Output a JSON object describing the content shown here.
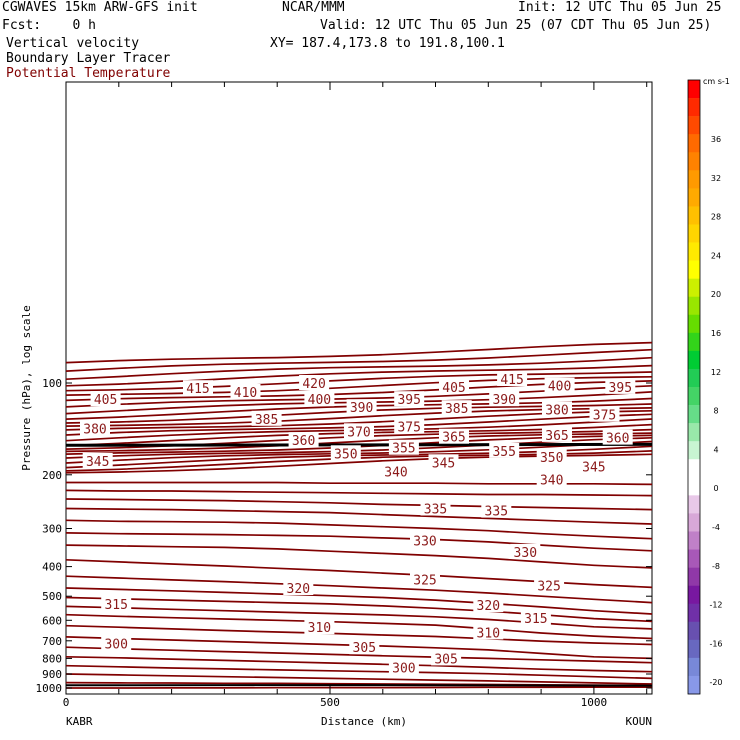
{
  "header": {
    "model": "CGWAVES 15km ARW-GFS init",
    "fcst": "Fcst:    0 h",
    "org": "NCAR/MMM",
    "init": "Init: 12 UTC Thu 05 Jun 25",
    "valid": "Valid: 12 UTC Thu 05 Jun 25 (07 CDT Thu 05 Jun 25)",
    "xy": "XY= 187.4,173.8 to 191.8,100.1",
    "field1": "Vertical velocity",
    "field2": "Boundary Layer Tracer",
    "field3": "Potential Temperature"
  },
  "colors": {
    "contour": "#800000",
    "label": "#8b1a1a",
    "header_red": "#800000"
  },
  "chart_data": {
    "type": "cross-section contour",
    "title": "Potential Temperature",
    "xlabel": "Distance (km)",
    "ylabel": "Pressure (hPa), log scale",
    "xlim": [
      0,
      1110
    ],
    "x_ticks": [
      "0",
      "500",
      "1000"
    ],
    "x_tick_values": [
      0,
      500,
      1000
    ],
    "left_station": "KABR",
    "right_station": "KOUN",
    "y_scale": "log",
    "y_ticks": [
      "100",
      "200",
      "300",
      "400",
      "500",
      "600",
      "700",
      "800",
      "900",
      "1000"
    ],
    "y_tick_values": [
      100,
      200,
      300,
      400,
      500,
      600,
      700,
      800,
      900,
      1000
    ],
    "contour_labels": [
      {
        "value": "420",
        "x": 470,
        "p": 100
      },
      {
        "value": "415",
        "x": 250,
        "p": 104
      },
      {
        "value": "415",
        "x": 845,
        "p": 97
      },
      {
        "value": "410",
        "x": 340,
        "p": 107
      },
      {
        "value": "405",
        "x": 75,
        "p": 113
      },
      {
        "value": "405",
        "x": 735,
        "p": 103
      },
      {
        "value": "400",
        "x": 480,
        "p": 113
      },
      {
        "value": "400",
        "x": 935,
        "p": 102
      },
      {
        "value": "395",
        "x": 650,
        "p": 113
      },
      {
        "value": "395",
        "x": 1050,
        "p": 103
      },
      {
        "value": "390",
        "x": 560,
        "p": 120
      },
      {
        "value": "390",
        "x": 830,
        "p": 113
      },
      {
        "value": "385",
        "x": 380,
        "p": 131
      },
      {
        "value": "385",
        "x": 740,
        "p": 121
      },
      {
        "value": "380",
        "x": 55,
        "p": 141
      },
      {
        "value": "380",
        "x": 930,
        "p": 122
      },
      {
        "value": "375",
        "x": 650,
        "p": 139
      },
      {
        "value": "375",
        "x": 1020,
        "p": 127
      },
      {
        "value": "370",
        "x": 555,
        "p": 144
      },
      {
        "value": "365",
        "x": 735,
        "p": 150
      },
      {
        "value": "365",
        "x": 930,
        "p": 148
      },
      {
        "value": "360",
        "x": 450,
        "p": 154
      },
      {
        "value": "360",
        "x": 1045,
        "p": 151
      },
      {
        "value": "355",
        "x": 640,
        "p": 163
      },
      {
        "value": "355",
        "x": 830,
        "p": 167
      },
      {
        "value": "350",
        "x": 530,
        "p": 170
      },
      {
        "value": "350",
        "x": 920,
        "p": 175
      },
      {
        "value": "345",
        "x": 60,
        "p": 180
      },
      {
        "value": "345",
        "x": 715,
        "p": 182
      },
      {
        "value": "345",
        "x": 1000,
        "p": 188
      },
      {
        "value": "340",
        "x": 625,
        "p": 195
      },
      {
        "value": "340",
        "x": 920,
        "p": 207
      },
      {
        "value": "335",
        "x": 700,
        "p": 258
      },
      {
        "value": "335",
        "x": 815,
        "p": 262
      },
      {
        "value": "330",
        "x": 680,
        "p": 328
      },
      {
        "value": "330",
        "x": 870,
        "p": 358
      },
      {
        "value": "325",
        "x": 680,
        "p": 440
      },
      {
        "value": "325",
        "x": 915,
        "p": 462
      },
      {
        "value": "320",
        "x": 440,
        "p": 470
      },
      {
        "value": "320",
        "x": 800,
        "p": 535
      },
      {
        "value": "315",
        "x": 95,
        "p": 530
      },
      {
        "value": "315",
        "x": 890,
        "p": 590
      },
      {
        "value": "310",
        "x": 480,
        "p": 632
      },
      {
        "value": "310",
        "x": 800,
        "p": 657
      },
      {
        "value": "305",
        "x": 565,
        "p": 735
      },
      {
        "value": "305",
        "x": 720,
        "p": 800
      },
      {
        "value": "300",
        "x": 95,
        "p": 715
      },
      {
        "value": "300",
        "x": 640,
        "p": 858
      }
    ],
    "colorbar_unit": "cm s-1",
    "colorbar_ticks": [
      "36",
      "32",
      "28",
      "24",
      "20",
      "16",
      "12",
      "8",
      "4",
      "0",
      "-4",
      "-8",
      "-12",
      "-16",
      "-20"
    ],
    "colorbar_colors": [
      "#ff0000",
      "#ff2a00",
      "#ff4a00",
      "#ff6a00",
      "#ff8200",
      "#ff9a00",
      "#ffaa00",
      "#ffc000",
      "#ffd500",
      "#ffea00",
      "#ffff00",
      "#ccf000",
      "#99e600",
      "#66dd00",
      "#33d41a",
      "#00cc33",
      "#22cc55",
      "#44d466",
      "#66dd88",
      "#99e8aa",
      "#c8f5d2",
      "#ffffff",
      "#ffffff",
      "#e8c8e8",
      "#d8a8d8",
      "#c080c8",
      "#a858b8",
      "#9038a8",
      "#7818a0",
      "#7030a8",
      "#6850b0",
      "#6868c0",
      "#7888d8",
      "#8898e8"
    ]
  }
}
